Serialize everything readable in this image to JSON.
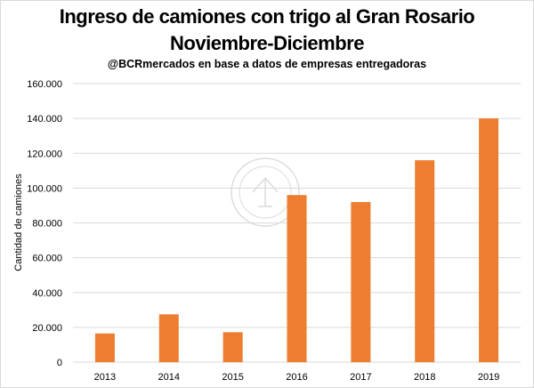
{
  "chart_data": {
    "type": "bar",
    "title": "Ingreso de camiones con trigo al Gran Rosario",
    "subtitle_line": "Noviembre-Diciembre",
    "source": "@BCRmercados en base a datos de empresas entregadoras",
    "xlabel": "",
    "ylabel": "Cantidad de camiones",
    "categories": [
      "2013",
      "2014",
      "2015",
      "2016",
      "2017",
      "2018",
      "2019"
    ],
    "values": [
      16500,
      27500,
      17200,
      96000,
      92000,
      116000,
      140000
    ],
    "ylim": [
      0,
      160000
    ],
    "yticks": [
      0,
      20000,
      40000,
      60000,
      80000,
      100000,
      120000,
      140000,
      160000
    ],
    "ytick_labels": [
      "0",
      "20.000",
      "40.000",
      "60.000",
      "80.000",
      "100.000",
      "120.000",
      "140.000",
      "160.000"
    ],
    "grid": true,
    "bar_color": "#ed7d31",
    "grid_color": "#d9d9d9"
  }
}
